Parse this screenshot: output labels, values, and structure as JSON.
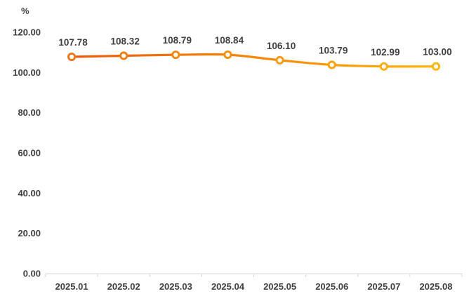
{
  "chart_data": {
    "type": "line",
    "unit_label": "%",
    "categories": [
      "2025.01",
      "2025.02",
      "2025.03",
      "2025.04",
      "2025.05",
      "2025.06",
      "2025.07",
      "2025.08"
    ],
    "series": [
      {
        "name": "value",
        "values": [
          107.78,
          108.32,
          108.79,
          108.84,
          106.1,
          103.79,
          102.99,
          103.0
        ]
      }
    ],
    "data_labels": [
      "107.78",
      "108.32",
      "108.79",
      "108.84",
      "106.10",
      "103.79",
      "102.99",
      "103.00"
    ],
    "ylim": [
      0,
      120
    ],
    "ytick_values": [
      0,
      20,
      40,
      60,
      80,
      100,
      120
    ],
    "ytick_labels": [
      "0.00",
      "20.00",
      "40.00",
      "60.00",
      "80.00",
      "100.00",
      "120.00"
    ],
    "grid": false,
    "legend": "none",
    "title": "",
    "xlabel": "",
    "ylabel": "%",
    "colors": {
      "line_gradient_start": "#EC5A0D",
      "line_gradient_end": "#FFB508",
      "marker_gradient_start": "#F0740F",
      "marker_gradient_end": "#FFB508",
      "marker_fill": "#FFFFFF",
      "axis_line": "#D6D6D6",
      "text": "#3F3F3F"
    }
  }
}
